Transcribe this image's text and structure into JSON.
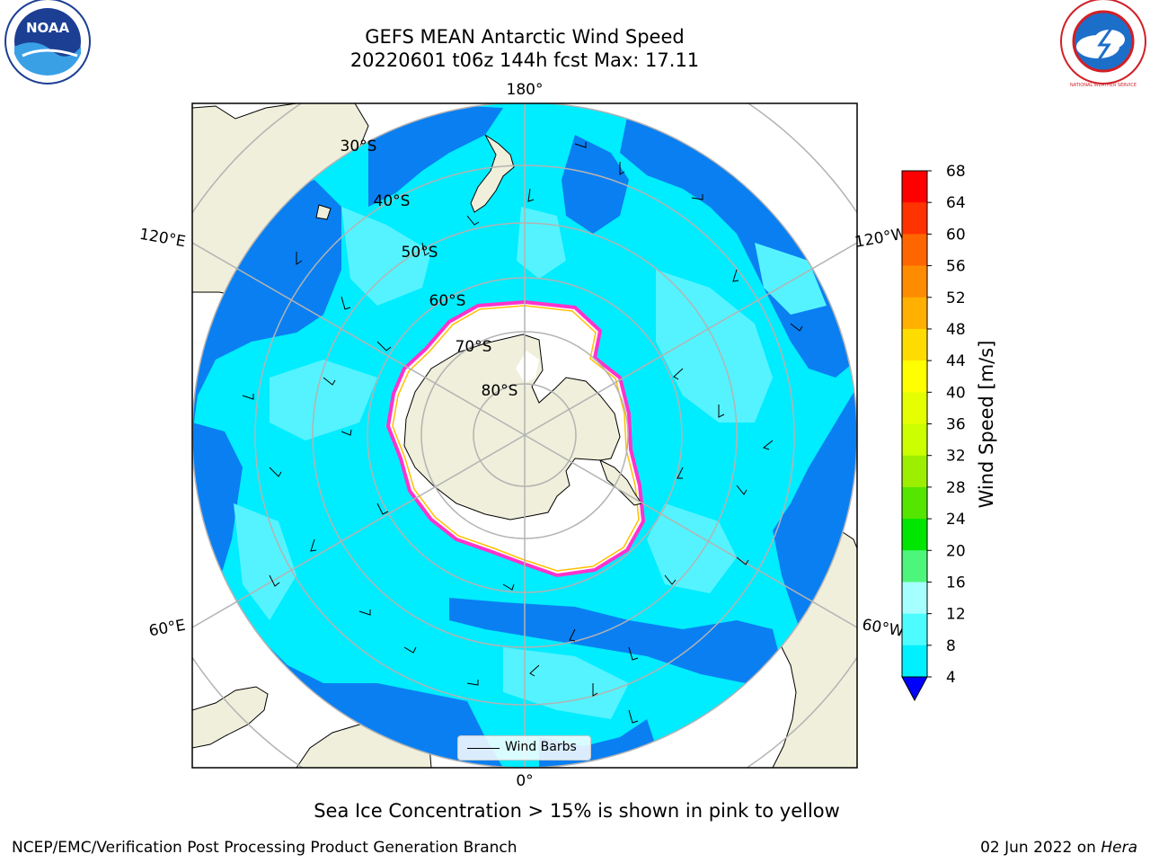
{
  "title": {
    "line1": "GEFS MEAN Antarctic Wind Speed",
    "line2": "20220601 t06z 144h fcst   Max: 17.11"
  },
  "map": {
    "projection": "south-polar-stereographic",
    "meridian_labels": {
      "top": "180°",
      "bottom": "0°",
      "upper_left": "120°E",
      "upper_right": "120°W",
      "lower_left": "60°E",
      "lower_right": "60°W"
    },
    "parallel_labels": [
      "30°S",
      "40°S",
      "50°S",
      "60°S",
      "70°S",
      "80°S"
    ],
    "legend_label": "Wind Barbs"
  },
  "colorbar": {
    "label": "Wind Speed [m/s]",
    "ticks": [
      "68",
      "64",
      "60",
      "56",
      "52",
      "48",
      "44",
      "40",
      "36",
      "32",
      "28",
      "24",
      "20",
      "16",
      "12",
      "8",
      "4"
    ],
    "colors_high_to_low": [
      "#ff0000",
      "#ff3300",
      "#ff6600",
      "#ff8c00",
      "#ffb000",
      "#ffdc00",
      "#ffff00",
      "#e6ff00",
      "#ccff00",
      "#9cef00",
      "#55e600",
      "#00e600",
      "#4df57a",
      "#a6ffff",
      "#4dfcff",
      "#00f0ff",
      "#0080ff"
    ],
    "min_extension_color": "#0000ff"
  },
  "colors": {
    "land": "#efefdb",
    "ice": "#ffffff",
    "ocean_dark": "#0a7ff2",
    "ocean_mid": "#00ecff",
    "ocean_light": "#55f3ff",
    "ice_edge": "#ff33cc"
  },
  "caption": "Sea Ice Concentration > 15% is shown in pink to yellow",
  "footer": {
    "left": "NCEP/EMC/Verification Post Processing Product Generation Branch",
    "right_date": "02 Jun 2022 on ",
    "right_host": "Hera"
  },
  "logos": {
    "left_text": "NOAA",
    "right_text": "NATIONAL WEATHER SERVICE"
  }
}
